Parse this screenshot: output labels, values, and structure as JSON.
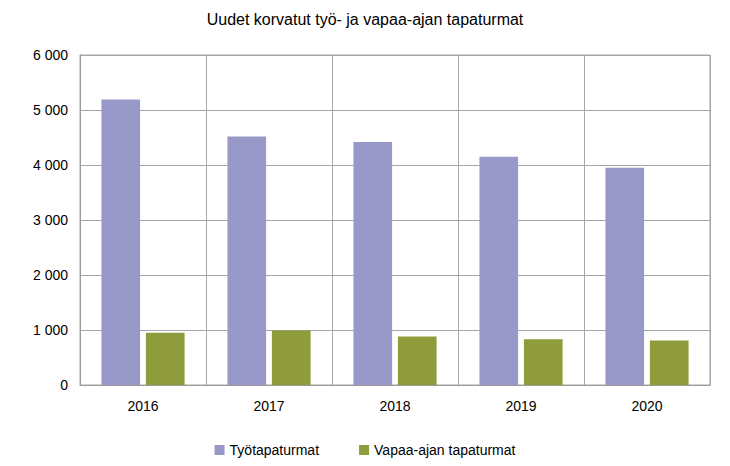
{
  "chart_data": {
    "type": "bar",
    "title": "Uudet korvatut työ- ja vapaa-ajan tapaturmat",
    "categories": [
      "2016",
      "2017",
      "2018",
      "2019",
      "2020"
    ],
    "series": [
      {
        "name": "Työtapaturmat",
        "color": "#9999c9",
        "values": [
          5190,
          4520,
          4420,
          4150,
          3950
        ]
      },
      {
        "name": "Vapaa-ajan tapaturmat",
        "color": "#8f9c3c",
        "values": [
          950,
          990,
          880,
          830,
          810
        ]
      }
    ],
    "ylim": [
      0,
      6000
    ],
    "yticks": [
      0,
      {
        "value": 1000,
        "label": "1 000"
      },
      {
        "value": 2000,
        "label": "2 000"
      },
      {
        "value": 3000,
        "label": "3 000"
      },
      {
        "value": 4000,
        "label": "4 000"
      },
      {
        "value": 5000,
        "label": "5 000"
      },
      {
        "value": 6000,
        "label": "6 000"
      }
    ],
    "grid": true,
    "legend": "bottom"
  }
}
